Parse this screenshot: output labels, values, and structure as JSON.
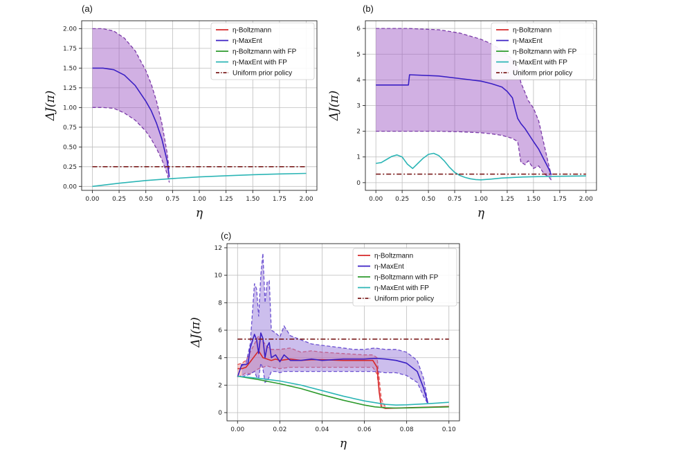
{
  "chart_data": [
    {
      "panel": "(a)",
      "type": "line",
      "xlabel": "η",
      "ylabel": "ΔJ(π)",
      "xlim": [
        -0.1,
        2.1
      ],
      "ylim": [
        -0.05,
        2.1
      ],
      "xticks": [
        "0.00",
        "0.25",
        "0.50",
        "0.75",
        "1.00",
        "1.25",
        "1.50",
        "1.75",
        "2.00"
      ],
      "xtick_values": [
        0,
        0.25,
        0.5,
        0.75,
        1.0,
        1.25,
        1.5,
        1.75,
        2.0
      ],
      "yticks": [
        "0.00",
        "0.25",
        "0.50",
        "0.75",
        "1.00",
        "1.25",
        "1.50",
        "1.75",
        "2.00"
      ],
      "ytick_values": [
        0,
        0.25,
        0.5,
        0.75,
        1.0,
        1.25,
        1.5,
        1.75,
        2.0
      ],
      "grid": true,
      "legend_position": "top-right",
      "legend": [
        {
          "label": "η-Boltzmann",
          "color": "#d62728",
          "dash": "solid"
        },
        {
          "label": "η-MaxEnt",
          "color": "#3a1fc4",
          "dash": "solid"
        },
        {
          "label": "η-Boltzmann with FP",
          "color": "#2c9a2c",
          "dash": "solid"
        },
        {
          "label": "η-MaxEnt with FP",
          "color": "#2bb5b5",
          "dash": "solid"
        },
        {
          "label": "Uniform prior policy",
          "color": "#7a1a1a",
          "dash": "dashdot"
        }
      ],
      "bands": [
        {
          "color": "#9a4fc1",
          "edge": "#7a3aa8",
          "x": [
            0,
            0.1,
            0.2,
            0.3,
            0.4,
            0.5,
            0.55,
            0.6,
            0.65,
            0.7,
            0.72
          ],
          "upper": [
            2.0,
            2.0,
            1.97,
            1.88,
            1.72,
            1.47,
            1.3,
            1.08,
            0.8,
            0.42,
            0.2
          ],
          "lower": [
            1.0,
            1.0,
            0.99,
            0.93,
            0.84,
            0.7,
            0.6,
            0.48,
            0.34,
            0.16,
            0.05
          ]
        }
      ],
      "series": [
        {
          "name": "η-MaxEnt",
          "color": "#3a1fc4",
          "dash": "solid",
          "x": [
            0,
            0.1,
            0.2,
            0.3,
            0.4,
            0.5,
            0.55,
            0.6,
            0.65,
            0.7,
            0.72
          ],
          "y": [
            1.5,
            1.5,
            1.48,
            1.41,
            1.28,
            1.08,
            0.96,
            0.8,
            0.6,
            0.32,
            0.12
          ]
        },
        {
          "name": "η-MaxEnt with FP",
          "color": "#2bb5b5",
          "dash": "solid",
          "x": [
            0,
            0.25,
            0.5,
            0.75,
            1.0,
            1.25,
            1.5,
            1.75,
            2.0
          ],
          "y": [
            0.0,
            0.04,
            0.075,
            0.1,
            0.12,
            0.135,
            0.148,
            0.158,
            0.165
          ]
        },
        {
          "name": "Uniform prior policy",
          "color": "#7a1a1a",
          "dash": "dashdot",
          "x": [
            0,
            2.0
          ],
          "y": [
            0.25,
            0.25
          ]
        }
      ]
    },
    {
      "panel": "(b)",
      "type": "line",
      "xlabel": "η",
      "ylabel": "ΔJ(π)",
      "xlim": [
        -0.1,
        2.1
      ],
      "ylim": [
        -0.3,
        6.3
      ],
      "xticks": [
        "0.00",
        "0.25",
        "0.50",
        "0.75",
        "1.00",
        "1.25",
        "1.50",
        "1.75",
        "2.00"
      ],
      "xtick_values": [
        0,
        0.25,
        0.5,
        0.75,
        1.0,
        1.25,
        1.5,
        1.75,
        2.0
      ],
      "yticks": [
        "0",
        "1",
        "2",
        "3",
        "4",
        "5",
        "6"
      ],
      "ytick_values": [
        0,
        1,
        2,
        3,
        4,
        5,
        6
      ],
      "grid": true,
      "legend_position": "top-right",
      "legend": [
        {
          "label": "η-Boltzmann",
          "color": "#d62728",
          "dash": "solid"
        },
        {
          "label": "η-MaxEnt",
          "color": "#3a1fc4",
          "dash": "solid"
        },
        {
          "label": "η-Boltzmann with FP",
          "color": "#2c9a2c",
          "dash": "solid"
        },
        {
          "label": "η-MaxEnt with FP",
          "color": "#2bb5b5",
          "dash": "solid"
        },
        {
          "label": "Uniform prior policy",
          "color": "#7a1a1a",
          "dash": "dashdot"
        }
      ],
      "bands": [
        {
          "color": "#9a4fc1",
          "edge": "#7a3aa8",
          "x": [
            0,
            0.3,
            0.6,
            0.8,
            1.0,
            1.1,
            1.2,
            1.3,
            1.35,
            1.38,
            1.42,
            1.45,
            1.5,
            1.55,
            1.6,
            1.65,
            1.67
          ],
          "upper": [
            6.0,
            6.0,
            5.95,
            5.82,
            5.58,
            5.4,
            5.15,
            4.8,
            4.5,
            3.9,
            3.5,
            3.2,
            2.9,
            2.4,
            1.5,
            0.6,
            0.3
          ],
          "lower": [
            2.0,
            2.0,
            2.0,
            1.98,
            1.94,
            1.9,
            1.84,
            1.72,
            1.6,
            0.8,
            0.7,
            0.85,
            0.55,
            0.65,
            0.35,
            0.2,
            0.1
          ]
        }
      ],
      "series": [
        {
          "name": "η-MaxEnt",
          "color": "#3a1fc4",
          "dash": "solid",
          "x": [
            0,
            0.15,
            0.3,
            0.31,
            0.32,
            0.6,
            0.8,
            1.0,
            1.1,
            1.2,
            1.25,
            1.3,
            1.33,
            1.35,
            1.38,
            1.42,
            1.5,
            1.55,
            1.6,
            1.65,
            1.67
          ],
          "y": [
            3.8,
            3.8,
            3.8,
            3.8,
            4.2,
            4.15,
            4.05,
            3.95,
            3.85,
            3.72,
            3.55,
            3.3,
            2.8,
            2.5,
            2.3,
            2.1,
            1.6,
            1.3,
            0.9,
            0.5,
            0.3
          ]
        },
        {
          "name": "η-MaxEnt with FP",
          "color": "#2bb5b5",
          "dash": "solid",
          "x": [
            0,
            0.05,
            0.1,
            0.15,
            0.2,
            0.25,
            0.3,
            0.35,
            0.4,
            0.45,
            0.5,
            0.55,
            0.6,
            0.65,
            0.7,
            0.75,
            0.8,
            0.85,
            0.9,
            0.95,
            1.0,
            1.1,
            1.2,
            1.4,
            1.6,
            1.8,
            2.0
          ],
          "y": [
            0.75,
            0.78,
            0.9,
            1.02,
            1.08,
            1.0,
            0.72,
            0.55,
            0.75,
            0.95,
            1.1,
            1.14,
            1.05,
            0.85,
            0.6,
            0.4,
            0.28,
            0.2,
            0.15,
            0.12,
            0.11,
            0.14,
            0.18,
            0.22,
            0.24,
            0.25,
            0.26
          ]
        },
        {
          "name": "Uniform prior policy",
          "color": "#7a1a1a",
          "dash": "dashdot",
          "x": [
            0,
            2.0
          ],
          "y": [
            0.33,
            0.33
          ]
        }
      ]
    },
    {
      "panel": "(c)",
      "type": "line",
      "xlabel": "η",
      "ylabel": "ΔJ(π)",
      "xlim": [
        -0.005,
        0.105
      ],
      "ylim": [
        -0.6,
        12.3
      ],
      "xticks": [
        "0.00",
        "0.02",
        "0.04",
        "0.06",
        "0.08",
        "0.10"
      ],
      "xtick_values": [
        0,
        0.02,
        0.04,
        0.06,
        0.08,
        0.1
      ],
      "yticks": [
        "0",
        "2",
        "4",
        "6",
        "8",
        "10",
        "12"
      ],
      "ytick_values": [
        0,
        2,
        4,
        6,
        8,
        10,
        12
      ],
      "grid": true,
      "legend_position": "top-right",
      "legend": [
        {
          "label": "η-Boltzmann",
          "color": "#d62728",
          "dash": "solid"
        },
        {
          "label": "η-MaxEnt",
          "color": "#3a1fc4",
          "dash": "solid"
        },
        {
          "label": "η-Boltzmann with FP",
          "color": "#2c9a2c",
          "dash": "solid"
        },
        {
          "label": "η-MaxEnt with FP",
          "color": "#2bb5b5",
          "dash": "solid"
        },
        {
          "label": "Uniform prior policy",
          "color": "#7a1a1a",
          "dash": "dashdot"
        }
      ],
      "bands": [
        {
          "color": "#f08a8a",
          "edge": "#e35555",
          "x": [
            0,
            0.002,
            0.004,
            0.006,
            0.008,
            0.01,
            0.012,
            0.014,
            0.016,
            0.02,
            0.025,
            0.03,
            0.035,
            0.04,
            0.05,
            0.06,
            0.064,
            0.066,
            0.068,
            0.07
          ],
          "upper": [
            3.5,
            3.6,
            3.8,
            4.4,
            5.0,
            5.6,
            5.2,
            4.8,
            4.6,
            4.6,
            4.7,
            4.4,
            4.5,
            4.4,
            4.3,
            4.2,
            4.2,
            4.0,
            1.0,
            0.4
          ],
          "lower": [
            2.6,
            2.7,
            2.9,
            2.8,
            3.0,
            3.2,
            3.3,
            3.4,
            3.3,
            3.2,
            3.3,
            3.3,
            3.3,
            3.3,
            3.3,
            3.3,
            3.3,
            2.8,
            0.4,
            0.3
          ]
        },
        {
          "color": "#8f6fd6",
          "edge": "#6a4fd0",
          "x": [
            0.002,
            0.004,
            0.006,
            0.008,
            0.009,
            0.01,
            0.011,
            0.012,
            0.013,
            0.014,
            0.015,
            0.016,
            0.018,
            0.02,
            0.022,
            0.025,
            0.03,
            0.035,
            0.04,
            0.045,
            0.05,
            0.055,
            0.06,
            0.065,
            0.07,
            0.075,
            0.08,
            0.085,
            0.088,
            0.09
          ],
          "upper": [
            3.4,
            3.6,
            5.0,
            9.4,
            9.0,
            7.0,
            10.0,
            11.6,
            8.0,
            9.5,
            9.6,
            6.0,
            5.8,
            5.5,
            6.3,
            5.6,
            5.3,
            5.0,
            4.9,
            4.8,
            4.7,
            4.6,
            4.6,
            4.7,
            4.6,
            4.6,
            4.4,
            3.8,
            2.5,
            0.7
          ],
          "lower": [
            2.6,
            2.7,
            2.8,
            3.0,
            2.6,
            2.5,
            3.6,
            3.2,
            2.2,
            2.3,
            2.6,
            3.0,
            3.0,
            2.9,
            3.0,
            3.0,
            3.0,
            3.0,
            3.0,
            3.0,
            3.0,
            3.0,
            3.0,
            3.0,
            2.9,
            2.9,
            2.7,
            2.2,
            1.2,
            0.65
          ]
        }
      ],
      "series": [
        {
          "name": "η-Boltzmann",
          "color": "#d62728",
          "dash": "solid",
          "x": [
            0,
            0.002,
            0.004,
            0.006,
            0.008,
            0.01,
            0.012,
            0.014,
            0.016,
            0.018,
            0.02,
            0.025,
            0.03,
            0.035,
            0.04,
            0.05,
            0.06,
            0.064,
            0.066,
            0.067,
            0.068,
            0.07,
            0.08,
            0.09,
            0.1
          ],
          "y": [
            3.2,
            3.2,
            3.3,
            3.7,
            4.1,
            4.5,
            4.0,
            3.9,
            3.8,
            3.9,
            3.8,
            3.9,
            3.8,
            3.85,
            3.85,
            3.8,
            3.8,
            3.8,
            3.3,
            1.5,
            0.4,
            0.3,
            0.35,
            0.4,
            0.45
          ]
        },
        {
          "name": "η-MaxEnt",
          "color": "#3a1fc4",
          "dash": "solid",
          "x": [
            0,
            0.002,
            0.004,
            0.005,
            0.006,
            0.008,
            0.009,
            0.01,
            0.011,
            0.012,
            0.013,
            0.014,
            0.015,
            0.016,
            0.018,
            0.02,
            0.022,
            0.025,
            0.03,
            0.035,
            0.04,
            0.045,
            0.05,
            0.055,
            0.06,
            0.065,
            0.07,
            0.075,
            0.08,
            0.085,
            0.088,
            0.09
          ],
          "y": [
            2.6,
            3.5,
            3.5,
            3.6,
            4.7,
            5.7,
            5.3,
            4.3,
            5.8,
            5.4,
            4.0,
            4.8,
            5.1,
            4.0,
            4.2,
            3.7,
            4.2,
            3.8,
            3.8,
            3.9,
            3.8,
            3.85,
            3.9,
            3.9,
            3.9,
            3.95,
            3.9,
            3.8,
            3.6,
            3.0,
            1.8,
            0.7
          ]
        },
        {
          "name": "η-Boltzmann with FP",
          "color": "#2c9a2c",
          "dash": "solid",
          "x": [
            0,
            0.01,
            0.02,
            0.03,
            0.04,
            0.05,
            0.06,
            0.065,
            0.07,
            0.075,
            0.08,
            0.09,
            0.1
          ],
          "y": [
            2.65,
            2.4,
            2.1,
            1.75,
            1.3,
            0.9,
            0.55,
            0.42,
            0.35,
            0.33,
            0.34,
            0.38,
            0.42
          ]
        },
        {
          "name": "η-MaxEnt with FP",
          "color": "#2bb5b5",
          "dash": "solid",
          "x": [
            0,
            0.01,
            0.02,
            0.03,
            0.04,
            0.05,
            0.06,
            0.07,
            0.075,
            0.08,
            0.09,
            0.1
          ],
          "y": [
            2.65,
            2.5,
            2.3,
            2.0,
            1.6,
            1.2,
            0.85,
            0.6,
            0.55,
            0.57,
            0.65,
            0.75
          ]
        },
        {
          "name": "Uniform prior policy",
          "color": "#7a1a1a",
          "dash": "dashdot",
          "x": [
            0,
            0.1
          ],
          "y": [
            5.35,
            5.35
          ]
        }
      ]
    }
  ]
}
